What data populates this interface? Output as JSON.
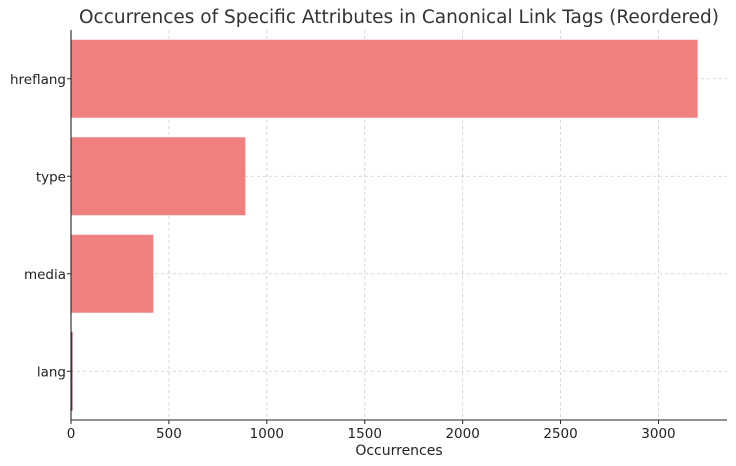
{
  "chart_data": {
    "type": "bar",
    "orientation": "horizontal",
    "title": "Occurrences of Specific Attributes in Canonical Link Tags (Reordered)",
    "xlabel": "Occurrences",
    "ylabel": "",
    "categories": [
      "hreflang",
      "type",
      "media",
      "lang"
    ],
    "values": [
      3200,
      890,
      420,
      5
    ],
    "xlim": [
      0,
      3350
    ],
    "xticks": [
      0,
      500,
      1000,
      1500,
      2000,
      2500,
      3000
    ],
    "grid": true,
    "bar_color": "#f08080"
  }
}
